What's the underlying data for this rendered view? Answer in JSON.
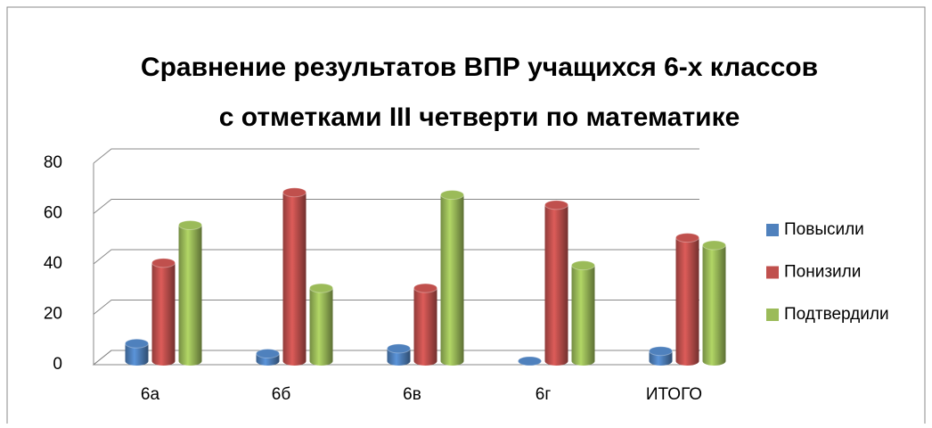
{
  "chart_data": {
    "type": "bar3d",
    "title": [
      "Сравнение результатов ВПР учащихся 6-х классов",
      "с отметками  III четверти по математике"
    ],
    "categories": [
      "6а",
      "6б",
      "6в",
      "6г",
      "ИТОГО"
    ],
    "series": [
      {
        "name": "Повысили",
        "color": "#4f81bd",
        "values": [
          7,
          3,
          5,
          0,
          4
        ]
      },
      {
        "name": "Понизили",
        "color": "#c0504d",
        "values": [
          39,
          67,
          29,
          62,
          49
        ]
      },
      {
        "name": "Подтвердили",
        "color": "#9bbb59",
        "values": [
          54,
          29,
          66,
          38,
          46
        ]
      }
    ],
    "ylim": [
      0,
      80
    ],
    "yticks": [
      0,
      20,
      40,
      60,
      80
    ],
    "grid": true,
    "legend": "right"
  }
}
